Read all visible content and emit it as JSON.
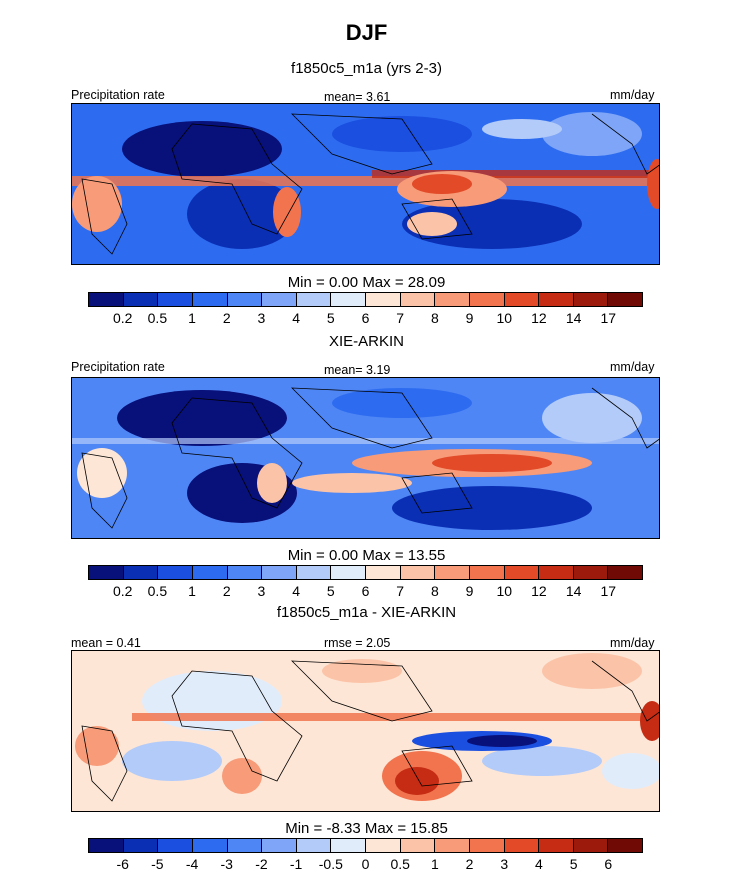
{
  "title": "DJF",
  "panels": [
    {
      "id": "model",
      "subtitle": "f1850c5_m1a (yrs 2-3)",
      "left_label": "Precipitation rate",
      "center_label": "mean=   3.61",
      "right_label": "mm/day",
      "minmax": "Min =   0.00 Max =  28.09",
      "type": "sequential"
    },
    {
      "id": "obs",
      "subtitle": "XIE-ARKIN",
      "left_label": "Precipitation rate",
      "center_label": "mean=   3.19",
      "right_label": "mm/day",
      "minmax": "Min =   0.00 Max =  13.55",
      "type": "sequential"
    },
    {
      "id": "diff",
      "subtitle": "f1850c5_m1a - XIE-ARKIN",
      "left_label": "mean =   0.41",
      "center_label": "rmse =   2.05",
      "right_label": "mm/day",
      "minmax": "Min =  -8.33 Max =  15.85",
      "type": "diverging"
    }
  ],
  "colorbars": {
    "sequential": {
      "ticks": [
        "0.2",
        "0.5",
        "1",
        "2",
        "3",
        "4",
        "5",
        "6",
        "7",
        "8",
        "9",
        "10",
        "12",
        "14",
        "17"
      ],
      "colors": [
        "#08107a",
        "#0a2fb5",
        "#1a4fe0",
        "#2d6cf0",
        "#4f86f5",
        "#7ea5f7",
        "#b3cbf9",
        "#e1ecfb",
        "#fde6d6",
        "#fbc4a8",
        "#f79b78",
        "#f1744e",
        "#e24a28",
        "#c52c13",
        "#9c1a0b",
        "#6f0a04"
      ]
    },
    "diverging": {
      "ticks": [
        "-6",
        "-5",
        "-4",
        "-3",
        "-2",
        "-1",
        "-0.5",
        "0",
        "0.5",
        "1",
        "2",
        "3",
        "4",
        "5",
        "6"
      ],
      "colors": [
        "#08107a",
        "#0a2fb5",
        "#1a4fe0",
        "#2d6cf0",
        "#4f86f5",
        "#7ea5f7",
        "#b3cbf9",
        "#e1ecfb",
        "#fde6d6",
        "#fbc4a8",
        "#f79b78",
        "#f1744e",
        "#e24a28",
        "#c52c13",
        "#9c1a0b",
        "#6f0a04"
      ]
    }
  }
}
